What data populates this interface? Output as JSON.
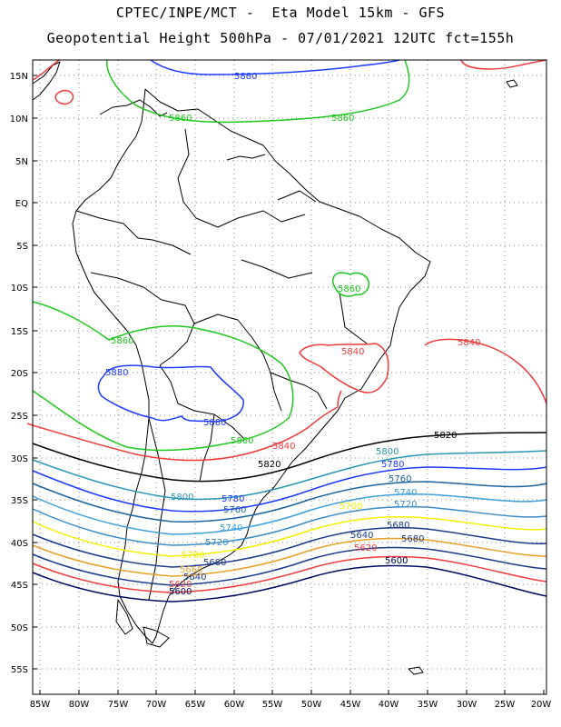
{
  "header": {
    "line1": "CPTEC/INPE/MCT -  Eta Model 15km - GFS",
    "line2": "Geopotential Height 500hPa - 07/01/2021 12UTC fct=155h"
  },
  "axes": {
    "lat_labels": [
      "15N",
      "10N",
      "5N",
      "EQ",
      "5S",
      "10S",
      "15S",
      "20S",
      "25S",
      "30S",
      "35S",
      "40S",
      "45S",
      "50S",
      "55S"
    ],
    "lon_labels": [
      "85W",
      "80W",
      "75W",
      "70W",
      "65W",
      "60W",
      "55W",
      "50W",
      "45W",
      "40W",
      "35W",
      "30W",
      "25W",
      "20W"
    ]
  },
  "contour_colors": {
    "5880": "#1e3cff",
    "5860": "#1ec81e",
    "5840": "#f03c3c",
    "5820": "#000000",
    "5800": "#2896b4",
    "5780": "#1e3cff",
    "5760": "#1e64a0",
    "5740": "#3ca0dc",
    "5720": "#3c8cc8",
    "5700": "#f5f000",
    "5680": "#1e3c8c",
    "5660": "#e6a028",
    "5640": "#1e3c8c",
    "5620": "#f03c3c",
    "5600": "#000a64"
  },
  "contour_labels": [
    {
      "text": "5880",
      "level": "5880"
    },
    {
      "text": "5860",
      "level": "5860"
    },
    {
      "text": "5860",
      "level": "5860"
    },
    {
      "text": "5860",
      "level": "5860"
    },
    {
      "text": "5860",
      "level": "5860"
    },
    {
      "text": "5860",
      "level": "5860"
    },
    {
      "text": "5880",
      "level": "5880"
    },
    {
      "text": "5880",
      "level": "5880"
    },
    {
      "text": "5840",
      "level": "5840"
    },
    {
      "text": "5840",
      "level": "5840"
    },
    {
      "text": "5840",
      "level": "5840"
    },
    {
      "text": "5820",
      "level": "5820"
    },
    {
      "text": "5820",
      "level": "5820"
    },
    {
      "text": "5800",
      "level": "5800"
    },
    {
      "text": "5800",
      "level": "5800"
    },
    {
      "text": "5780",
      "level": "5780"
    },
    {
      "text": "5780",
      "level": "5780"
    },
    {
      "text": "5760",
      "level": "5760"
    },
    {
      "text": "5760",
      "level": "5760"
    },
    {
      "text": "5740",
      "level": "5740"
    },
    {
      "text": "5740",
      "level": "5740"
    },
    {
      "text": "5720",
      "level": "5720"
    },
    {
      "text": "5720",
      "level": "5720"
    },
    {
      "text": "5700",
      "level": "5700"
    },
    {
      "text": "5700",
      "level": "5700"
    },
    {
      "text": "5680",
      "level": "5680"
    },
    {
      "text": "5680",
      "level": "5680"
    },
    {
      "text": "5680",
      "level": "5680"
    },
    {
      "text": "5660",
      "level": "5660"
    },
    {
      "text": "5640",
      "level": "5640"
    },
    {
      "text": "5640",
      "level": "5640"
    },
    {
      "text": "5620",
      "level": "5620"
    },
    {
      "text": "5620",
      "level": "5620"
    },
    {
      "text": "5600",
      "level": "5600"
    },
    {
      "text": "5600",
      "level": "5600"
    }
  ]
}
